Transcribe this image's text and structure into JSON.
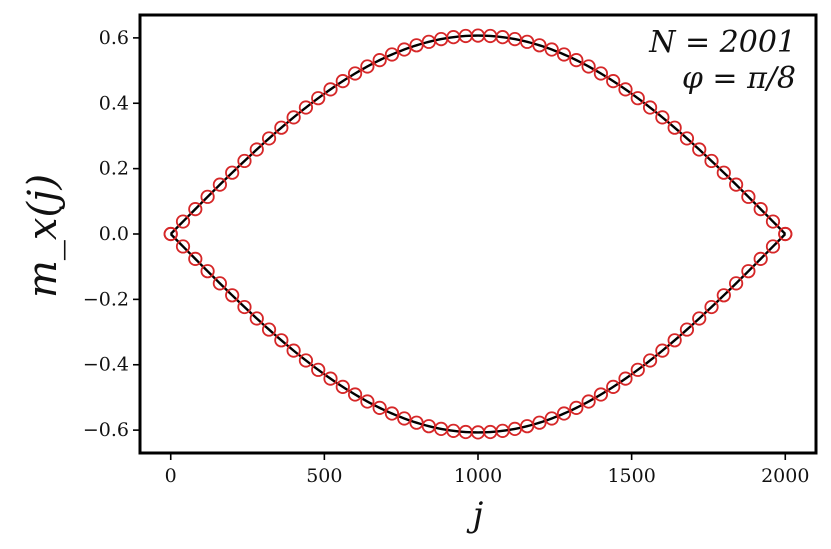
{
  "chart_data": {
    "type": "scatter",
    "title": "",
    "xlabel": "j",
    "ylabel": "m_x(j)",
    "xlim": [
      -100,
      2100
    ],
    "ylim": [
      -0.67,
      0.67
    ],
    "grid": false,
    "x_ticks": [
      0,
      500,
      1000,
      1500,
      2000
    ],
    "x_tick_labels": [
      "0",
      "500",
      "1000",
      "1500",
      "2000"
    ],
    "y_ticks": [
      0.6,
      0.4,
      0.2,
      0.0,
      -0.2,
      -0.4,
      -0.6
    ],
    "y_tick_labels": [
      "0.6",
      "0.4",
      "0.2",
      "0.0",
      "−0.2",
      "−0.4",
      "−0.6"
    ],
    "annotations": [
      "N = 2001",
      "φ = π/8"
    ],
    "point_color": "#d62728",
    "line_color": "#000000",
    "n_sites": 2001,
    "amplitude": 0.607,
    "series": [
      {
        "style": "line",
        "branch": "upper"
      },
      {
        "style": "line",
        "branch": "lower"
      },
      {
        "style": "markers",
        "branch": "upper"
      },
      {
        "style": "markers",
        "branch": "lower"
      }
    ]
  }
}
